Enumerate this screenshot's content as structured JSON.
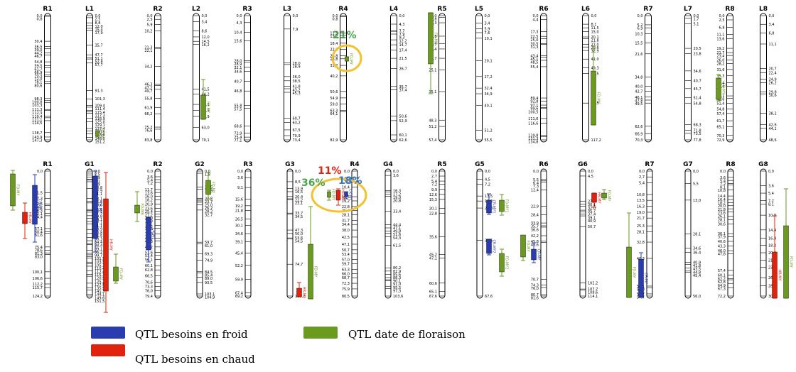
{
  "colors": {
    "cold": "#2a3cb0",
    "heat": "#e0230e",
    "flower": "#6a9a1e",
    "yellow": "#f2c230",
    "pctGreen": "#4aa34a",
    "pctRed": "#e0230e",
    "pctBlue": "#3a78c8"
  },
  "chromosomes": {
    "top": [
      "R1",
      "L1",
      "R2",
      "L2",
      "R3",
      "L3",
      "R4",
      "L4",
      "R5",
      "L5",
      "R6",
      "L6",
      "R7",
      "L7",
      "R8",
      "L8"
    ],
    "bottom": [
      "R1",
      "G1",
      "R2",
      "G2",
      "R3",
      "G3",
      "R4",
      "G4",
      "R5",
      "G5",
      "R6",
      "G6",
      "R7",
      "G7",
      "R8",
      "G8"
    ]
  },
  "qtl_labels": {
    "fd": "FD-MY",
    "cr": "CR-MY",
    "hr": "HR-MY",
    "fd_mb": "FD-MB",
    "cr1": "CR-MY1",
    "cr2": "CR-MY2",
    "fd1": "FD-MY1",
    "fd2": "FD-MY2"
  },
  "annotations": {
    "p21": "21%",
    "p11": "11%",
    "p36": "36%",
    "p18": "18%"
  },
  "legend": {
    "cold": "QTL besoins en froid",
    "heat": "QTL besoins en chaud",
    "flower": "QTL date de floraison"
  },
  "positions": {
    "R1_top": [
      "0,0",
      "0,8",
      "30,4",
      "36,5",
      "39,0",
      "44,2",
      "46,7",
      "54,8",
      "59,5",
      "61,7",
      "66,9",
      "70,3",
      "72,0",
      "78,1",
      "80,6",
      "98,3",
      "100,8",
      "103,3",
      "111,3",
      "112,3",
      "119,4",
      "121,1",
      "124,5",
      "138,7",
      "143,9",
      "147,3"
    ],
    "L1_top": [
      "0,0",
      "2,5",
      "8,8",
      "12,0",
      "15,4",
      "17,9",
      "35,7",
      "47,7",
      "51,1",
      "52,8",
      "57,7",
      "91,3",
      "101,3",
      "109,4",
      "111,4",
      "115,4",
      "117,3",
      "118,9",
      "125,0",
      "129,1",
      "137,4",
      "140,6",
      "143,8",
      "148,0",
      "151,2"
    ],
    "R2_top": [
      "0,0",
      "2,5",
      "5,9",
      "10,2",
      "21,3",
      "22,1",
      "34,2",
      "46,3",
      "47,2",
      "49,7",
      "55,8",
      "61,9",
      "66,2",
      "75,2",
      "76,6",
      "83,8"
    ],
    "L2_top": [
      "0,0",
      "3,4",
      "8,6",
      "12,0",
      "14,5",
      "16,2",
      "41,5",
      "44,2",
      "50,1",
      "53,5",
      "56,9",
      "63,0",
      "70,1"
    ],
    "R3_top": [
      "0,0",
      "4,3",
      "10,4",
      "15,6",
      "28,0",
      "28,9",
      "32,1",
      "34,6",
      "40,7",
      "46,8",
      "55,8",
      "57,5",
      "68,6",
      "72,9",
      "75,4",
      "77,1"
    ],
    "L3_top": [
      "0,0",
      "7,9",
      "28,0",
      "28,9",
      "36,0",
      "38,5",
      "41,8",
      "43,2",
      "45,3",
      "60,7",
      "63,2",
      "67,5",
      "70,9",
      "73,4"
    ],
    "R4_top": [
      "0,0",
      "0,8",
      "11,5",
      "13,2",
      "18,4",
      "22,5",
      "26,8",
      "28,8",
      "33,2",
      "40,2",
      "50,6",
      "54,9",
      "59,0",
      "63,3",
      "64,1",
      "82,9"
    ],
    "L4_top": [
      "0,0",
      "4,3",
      "7,7",
      "7,9",
      "9,3",
      "12,2",
      "14,7",
      "17,4",
      "21,5",
      "26,7",
      "35,7",
      "37,4",
      "50,6",
      "52,9",
      "60,1",
      "62,6"
    ],
    "R5_top": [
      "0,0",
      "0,8",
      "3,3",
      "9,5",
      "12,9",
      "15,4",
      "19,7",
      "25,1",
      "35,1",
      "48,3",
      "51,2",
      "57,4"
    ],
    "L5_top": [
      "0,0",
      "3,4",
      "5,9",
      "7,6",
      "10,1",
      "20,1",
      "27,2",
      "32,4",
      "34,9",
      "40,1",
      "51,2",
      "55,5"
    ],
    "R6_top": [
      "0,0",
      "4,4",
      "17,3",
      "22,5",
      "25,0",
      "30,5",
      "31,3",
      "43,4",
      "45,1",
      "48,5",
      "55,4",
      "89,4",
      "92,8",
      "97,1",
      "99,6",
      "100,5",
      "111,6",
      "116,6",
      "129,8",
      "131,3",
      "134,8"
    ],
    "L6_top": [
      "0,0",
      "8,1",
      "11,5",
      "15,0",
      "20,1",
      "21,8",
      "27,0",
      "29,6",
      "32,9",
      "41,0",
      "49,3",
      "54,5",
      "82,5",
      "117,2"
    ],
    "R7_top": [
      "0,0",
      "5,2",
      "6,9",
      "10,3",
      "15,5",
      "21,6",
      "34,8",
      "40,0",
      "42,7",
      "46,1",
      "47,8",
      "49,5",
      "62,6",
      "66,9",
      "70,3"
    ],
    "L7_top": [
      "0,0",
      "1,7",
      "5,1",
      "20,5",
      "23,8",
      "34,6",
      "40,7",
      "45,7",
      "51,4",
      "54,8",
      "68,3",
      "71,8",
      "73,5",
      "77,8"
    ],
    "R8_top": [
      "0,0",
      "2,5",
      "6,8",
      "11,1",
      "13,6",
      "19,2",
      "21,7",
      "23,4",
      "26,0",
      "28,2",
      "31,6",
      "35,3",
      "39,4",
      "41,4",
      "47,1",
      "48,6",
      "51,4",
      "54,8",
      "57,4",
      "61,7",
      "65,1",
      "70,3",
      "72,9"
    ],
    "L8_top": [
      "0,0",
      "3,4",
      "6,8",
      "11,1",
      "20,7",
      "22,4",
      "24,9",
      "26,2",
      "29,8",
      "30,6",
      "38,2",
      "42,6",
      "44,1",
      "48,6"
    ],
    "R1_bot": [
      "0,0",
      "21,5",
      "27,3",
      "32,6",
      "34,2",
      "38,3",
      "42,1",
      "44,4",
      "57,1",
      "60,4",
      "61,6",
      "75,4",
      "78,6",
      "81,3",
      "83,0",
      "100,1",
      "106,6",
      "112,2",
      "115,7",
      "124,2"
    ],
    "G1_bot": [
      "0,0",
      "2,5",
      "4,9",
      "7,1",
      "9,9",
      "10,8",
      "12,9",
      "21,1",
      "33,1",
      "36,8",
      "38,6",
      "46,6",
      "47,9",
      "49,8",
      "54,1",
      "57,1",
      "61,1",
      "63,9",
      "70,8",
      "75,5",
      "80,3",
      "84,4",
      "88,4",
      "89,1",
      "96,2",
      "99,7",
      "101,5",
      "103,5",
      "105,3",
      "110,4",
      "112,4",
      "115,3",
      "120,9",
      "125,2",
      "127,5",
      "135,9",
      "141,3",
      "144,1",
      "149,6",
      "151,5"
    ],
    "R2_bot": [
      "0,0",
      "3,6",
      "5,4",
      "7,2",
      "11,7",
      "13,6",
      "16,0",
      "18,2",
      "20,9",
      "23,6",
      "25,4",
      "27,2",
      "29,0",
      "30,8",
      "34,5",
      "36,3",
      "39,9",
      "42,6",
      "44,3",
      "48,2",
      "51,6",
      "53,4",
      "56,1",
      "60,1",
      "62,8",
      "66,5",
      "70,6",
      "73,3",
      "76,0",
      "79,4"
    ],
    "G2_bot": [
      "0,0",
      "1,8",
      "13,5",
      "15,3",
      "22,8",
      "23,7",
      "25,0",
      "26,2",
      "28,2",
      "32,7",
      "59,7",
      "61,0",
      "69,3",
      "74,9",
      "84,5",
      "85,4",
      "89,0",
      "93,5",
      "103,1",
      "104,9"
    ],
    "R3_bot": [
      "0,0",
      "3,6",
      "9,1",
      "15,6",
      "19,2",
      "21,8",
      "26,5",
      "30,1",
      "34,6",
      "39,1",
      "45,4",
      "52,2",
      "59,9",
      "67,4",
      "69,2"
    ],
    "G3_bot": [
      "0,0",
      "8,5",
      "13,9",
      "16,5",
      "20,4",
      "22,2",
      "23,1",
      "33,7",
      "34,5",
      "47,3",
      "50,0",
      "53,6",
      "54,5",
      "74,7",
      "100,2"
    ],
    "R4_bot": [
      "0,0",
      "4,5",
      "7,2",
      "10,4",
      "16,5",
      "19,2",
      "22,8",
      "25,4",
      "28,1",
      "31,7",
      "34,4",
      "38,0",
      "42,5",
      "47,1",
      "50,7",
      "53,4",
      "57,0",
      "59,7",
      "63,3",
      "66,0",
      "68,7",
      "72,3",
      "75,9",
      "80,5"
    ],
    "G4_bot": [
      "0,0",
      "3,6",
      "16,3",
      "17,2",
      "19,0",
      "20,8",
      "33,4",
      "44,4",
      "47,1",
      "49,8",
      "51,6",
      "54,3",
      "61,5",
      "80,2",
      "82,9",
      "85,6",
      "88,3",
      "90,1",
      "91,0",
      "95,5",
      "97,3",
      "103,6"
    ],
    "R5_bot": [
      "0,0",
      "2,7",
      "5,4",
      "7,2",
      "9,9",
      "12,6",
      "15,3",
      "20,1",
      "22,8",
      "35,6",
      "45,2",
      "47,1",
      "60,6",
      "65,1",
      "67,6"
    ],
    "G5_bot": [
      "0,0",
      "4,5",
      "7,2",
      "13,5",
      "16,2",
      "20,0",
      "37,5",
      "67,6"
    ],
    "R6_bot": [
      "0,0",
      "5,5",
      "6,4",
      "7,3",
      "12,4",
      "22,9",
      "28,4",
      "33,9",
      "35,7",
      "36,6",
      "42,2",
      "45,8",
      "46,6",
      "70,7",
      "74,3",
      "76,0",
      "80,7",
      "81,6"
    ],
    "G6_bot": [
      "0,0",
      "4,5",
      "27,4",
      "30,1",
      "32,0",
      "35,7",
      "37,4",
      "39,1",
      "40,9",
      "50,7",
      "102,2",
      "107,7",
      "108,6",
      "114,1"
    ],
    "R7_bot": [
      "0,0",
      "2,7",
      "5,4",
      "10,8",
      "13,5",
      "16,3",
      "19,0",
      "21,7",
      "25,3",
      "28,1",
      "32,8",
      "40,3",
      "53,1",
      "54,0",
      "56,7",
      "57,7"
    ],
    "G7_bot": [
      "0,0",
      "5,5",
      "13,0",
      "28,1",
      "34,6",
      "36,4",
      "40,9",
      "41,8",
      "43,5",
      "44,8",
      "45,4",
      "56,0"
    ],
    "R8_bot": [
      "0,0",
      "3,6",
      "5,4",
      "7,2",
      "8,1",
      "10,8",
      "14,4",
      "16,4",
      "18,2",
      "20,0",
      "21,8",
      "23,6",
      "26,1",
      "28,1",
      "30,6",
      "36,1",
      "37,9",
      "40,6",
      "43,3",
      "46,0",
      "47,8",
      "57,4",
      "60,1",
      "62,2",
      "62,8",
      "64,9",
      "67,3",
      "72,2"
    ],
    "G8_bot": [
      "0,0",
      "3,6",
      "5,4",
      "7,2",
      "8,1",
      "10,8",
      "14,4",
      "16,4",
      "18,2",
      "20,0",
      "21,8",
      "23,6",
      "26,1",
      "28,1",
      "30,6"
    ]
  }
}
